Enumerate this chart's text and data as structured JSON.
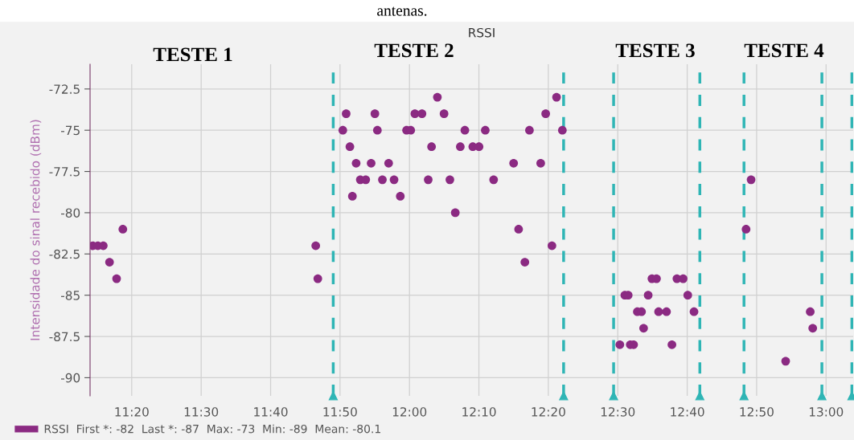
{
  "chart_data": {
    "type": "scatter",
    "title": "RSSI",
    "ylabel": "Intensidade do sinal recebido (dBm)",
    "annotations": [
      "antenas.",
      "TESTE 1",
      "TESTE 2",
      "TESTE 3",
      "TESTE 4"
    ],
    "series": [
      {
        "name": "RSSI  First *: -82  Last *: -87  Max: -73  Min: -89  Mean: -80.1",
        "color": "#8b2a82",
        "x": [
          11.24,
          11.252,
          11.265,
          11.28,
          11.297,
          11.312,
          11.775,
          11.78,
          11.84,
          11.848,
          11.857,
          11.863,
          11.872,
          11.882,
          11.895,
          11.908,
          11.917,
          11.923,
          11.935,
          11.95,
          11.963,
          11.978,
          11.993,
          12.003,
          12.013,
          12.03,
          12.045,
          12.053,
          12.067,
          12.083,
          12.097,
          12.11,
          12.122,
          12.133,
          12.152,
          12.167,
          12.182,
          12.202,
          12.25,
          12.262,
          12.277,
          12.288,
          12.315,
          12.327,
          12.342,
          12.353,
          12.367,
          12.505,
          12.517,
          12.525,
          12.53,
          12.538,
          12.547,
          12.557,
          12.562,
          12.573,
          12.582,
          12.593,
          12.598,
          12.617,
          12.63,
          12.642,
          12.657,
          12.668,
          12.683,
          12.808,
          12.82,
          12.903,
          12.962,
          12.968
        ],
        "values": [
          -82,
          -82,
          -82,
          -83,
          -84,
          -81,
          -82,
          -84,
          -75,
          -74,
          -76,
          -79,
          -77,
          -78,
          -78,
          -77,
          -74,
          -75,
          -78,
          -77,
          -78,
          -79,
          -75,
          -75,
          -74,
          -74,
          -78,
          -76,
          -73,
          -74,
          -78,
          -80,
          -76,
          -75,
          -76,
          -76,
          -75,
          -78,
          -77,
          -81,
          -83,
          -75,
          -77,
          -74,
          -82,
          -73,
          -75,
          -88,
          -85,
          -85,
          -88,
          -88,
          -86,
          -86,
          -87,
          -85,
          -84,
          -84,
          -86,
          -86,
          -88,
          -84,
          -84,
          -85,
          -86,
          -81,
          -78,
          -89,
          -86,
          -87
        ]
      }
    ],
    "xlim": [
      11.2333,
      13.065
    ],
    "ylim": [
      -91.1,
      -71.0
    ],
    "xticks": [
      {
        "value": 11.3333,
        "label": "11:20"
      },
      {
        "value": 11.5,
        "label": "11:30"
      },
      {
        "value": 11.6667,
        "label": "11:40"
      },
      {
        "value": 11.8333,
        "label": "11:50"
      },
      {
        "value": 12,
        "label": "12:00"
      },
      {
        "value": 12.1667,
        "label": "12:10"
      },
      {
        "value": 12.3333,
        "label": "12:20"
      },
      {
        "value": 12.5,
        "label": "12:30"
      },
      {
        "value": 12.6667,
        "label": "12:40"
      },
      {
        "value": 12.8333,
        "label": "12:50"
      },
      {
        "value": 13,
        "label": "13:00"
      }
    ],
    "yticks": [
      -72.5,
      -75,
      -77.5,
      -80,
      -82.5,
      -85,
      -87.5,
      -90
    ],
    "ref_lines": [
      {
        "axis": "x",
        "value": 11.817,
        "color": "#2fb5b5",
        "line_style": "dashed"
      },
      {
        "axis": "x",
        "value": 12.37,
        "color": "#2fb5b5",
        "line_style": "dashed"
      },
      {
        "axis": "x",
        "value": 12.49,
        "color": "#2fb5b5",
        "line_style": "dashed"
      },
      {
        "axis": "x",
        "value": 12.697,
        "color": "#2fb5b5",
        "line_style": "dashed"
      },
      {
        "axis": "x",
        "value": 12.803,
        "color": "#2fb5b5",
        "line_style": "dashed"
      },
      {
        "axis": "x",
        "value": 12.99,
        "color": "#2fb5b5",
        "line_style": "dashed"
      },
      {
        "axis": "x",
        "value": 13.062,
        "color": "#2fb5b5",
        "line_style": "dashed"
      }
    ],
    "grid": true,
    "legend": "bottom left",
    "marker": "circle"
  }
}
